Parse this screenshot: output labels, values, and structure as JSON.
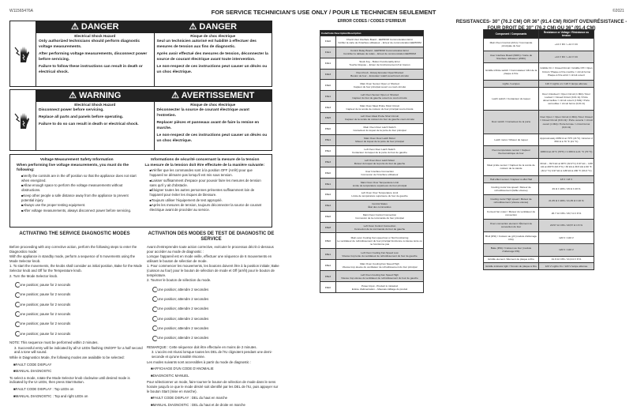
{
  "header": {
    "doc_id": "W11565476A",
    "title": "FOR SERVICE TECHNICIAN'S USE ONLY / POUR LE TECHNICIEN SEULEMENT",
    "copyright": "©2021"
  },
  "danger": {
    "en": {
      "title": "DANGER",
      "sub": "Electrical Shock Hazard",
      "p": [
        "Only authorized technicians should perform diagnostic voltage measurements.",
        "After performing voltage measurements, disconnect power before servicing.",
        "Failure to follow these instructions can result in death or electrical shock."
      ]
    },
    "fr": {
      "title": "DANGER",
      "sub": "Risque de choc électrique",
      "p": [
        "Seul un technicien autorisé est habilité à effectuer des mesures de tension aux fins de diagnostic.",
        "Après avoir effectué des mesures de tension, déconnecter la source de courant électrique avant toute intervention.",
        "Le non-respect de ces instructions peut causer un décès ou un choc électrique."
      ]
    }
  },
  "warning": {
    "en": {
      "title": "WARNING",
      "sub": "Electrical Shock Hazard",
      "p": [
        "Disconnect power before servicing.",
        "Replace all parts and panels before operating.",
        "Failure to do so can result in death or electrical shock."
      ]
    },
    "fr": {
      "title": "AVERTISSEMENT",
      "sub": "Risque de choc électrique",
      "p": [
        "Déconnecter la source de courant électrique avant l'entretien.",
        "Replacer pièces et panneaux avant de faire la remise en marche.",
        "Le non-respect de ces instructions peut causer un décès ou un choc électrique."
      ]
    }
  },
  "voltage": {
    "en": {
      "title": "Voltage Measurement Safety Information",
      "lead": "When performing live voltage measurements, you must do the following:",
      "items": [
        "Verify the controls are in the off position so that the appliance does not start when energized.",
        "Allow enough space to perform the voltage measurements without obstructions.",
        "Keep other people a safe distance away from the appliance to prevent potential injury.",
        "Always use the proper testing equipment.",
        "After voltage measurements, always disconnect power before servicing."
      ]
    },
    "fr": {
      "title": "Informations de sécurité concernant la mesure de la tension",
      "lead": "La mesure de la tension doit être effectuée de la manière suivante:",
      "items": [
        "Vérifier que les commandes sont à la position OFF (Arrêt) pour que l'appareil ne démarre pas lorsqu'il est mis sous tension.",
        "Laisser suffisamment d'espace pour pouvoir faire les mesures de tension sans qu'il y ait d'obstacle.",
        "Éloigner toutes les autres personnes présentes suffisamment loin de l'appareil pour éviter les risques de blessure.",
        "Toujours utiliser l'équipement de test approprié.",
        "Après les mesures de tension, toujours déconnecter la source de courant électrique avant de procéder au service."
      ]
    }
  },
  "activate": {
    "en": {
      "title": "ACTIVATING THE SERVICE DIAGNOSTIC MODES",
      "intro": [
        "Before proceeding with any corrective action, perform the following steps to enter the Diagnostics mode:",
        "With the appliance in standby mode, perform a sequence of 6 movements using the Mode Selector knob."
      ],
      "step1": "1. To start the movements, the knobs shall consider as initial position, Bake for the Mode Selector knob and Off for the Temperature knob.",
      "step2": "2. Turn the Mode Selector knob.",
      "steps": [
        "one position; pause for 2 seconds",
        "one position; pause for 2 seconds",
        "one position; pause for 2 seconds",
        "one position; pause for 2 seconds",
        "one position; pause for 2 seconds",
        "one position; pause for 2 seconds"
      ],
      "note": "NOTE: This sequence must be performed within 2 minutes.",
      "step3": "3. Successful entry will be indicated by all UI LEDs flashing ON/OFF for a half second and a tone will sound.",
      "avail": "While in Diagnostics Mode, the following modes are available to be selected:",
      "modes": [
        "FAULT CODE DISPLAY",
        "MANUAL DIAGNOSTIC"
      ],
      "select": "To select a mode, rotate the Mode Selector knob clockwise until desired mode is indicated by the UI LEDs, then press Start Button.",
      "leds": [
        "FAULT CODE DISPLAY : Top LEDs on",
        "MANUAL DIAGNOSTIC : Top and right LEDs on"
      ]
    },
    "fr": {
      "title": "ACTIVATION DES MODES DE TEST DE DIAGNOSTIC DE SERVICE",
      "intro": [
        "Avant d'entreprendre toute action corrective, exécuter le processus décrit ci-dessous pour accéder au mode de diagnostic :",
        "Lorsque l'appareil est en mode veille, effectuer une séquence de 6 mouvements en utilisant le bouton de sélection de mode."
      ],
      "step1": "1. Pour commencer les mouvements, les boutons doivent être à la position initiale; Bake (cuisson au four) pour le bouton de sélection de mode et Off (arrêt) pour le bouton de température.",
      "step2": "2. Tourner le bouton de sélection du mode.",
      "steps": [
        "Une position; attendre 2 secondes",
        "Une position; attendre 2 secondes",
        "Une position; attendre 2 secondes",
        "Une position; attendre 2 secondes",
        "Une position; attendre 2 secondes",
        "Une position; attendre 2 secondes"
      ],
      "note": "REMARQUE : Cette séquence doit être effectuée en moins de 2 minutes.",
      "step3": "3. L'accès est réussi lorsque toutes les DEL de l'IU clignotent pendant une demi-seconde et qu'une tonalité résonne.",
      "avail": "Les modes suivants sont accessibles à partir du mode de diagnostic :",
      "modes": [
        "AFFICHAGE D'UN CODE D'ANOMALIE",
        "DIAGNOSTIC MANUEL"
      ],
      "select": "Pour sélectionner un mode, faire tourner le bouton de sélection de mode dans le sens horaire jusqu'à ce que le mode désiré soit identifié par les DEL de l'IU, puis appuyer sur le bouton Start (mise en marche).",
      "leds": [
        "FAULT CODE DISPLAY : DEL du haut en marche",
        "MANUAL DIAGNOSTIC : DEL du haut et de droite en marche"
      ]
    }
  },
  "errors": {
    "title": "ERROR CODES / CODES D'ERREUR",
    "header": "Code/Code Description/Description",
    "rows": [
      [
        "F1E0",
        "Check User Interface Board - EEPROM Communication Error",
        "Vérifier la carte de l'interface utilisateur – Erreur de communication EEPROM"
      ],
      [
        "F1E1",
        "Control Relay Board - EEPROM Communication Error",
        "Contrôler le tableau de relais – Erreur de communication EEPROM"
      ],
      [
        "F2E1",
        "Stuck Key - Button Functionality Error",
        "Touche bloquée – Erreur de fonctionnement d'un bouton"
      ],
      [
        "F2E3",
        "Oven Knob - Rotary Encoder Open/Shorted",
        "Bouton de four – Encodeur rotatif ouvert/court-circuité"
      ],
      [
        "F3E0",
        "Main Oven Sensor Open or Shorted",
        "Capteur du four principal ouvert ou court-circuité"
      ],
      [
        "F3E1",
        "Left Oven Sensor Open or Shorted",
        "Capteur du four de gauche ouvert ou court-circuité"
      ],
      [
        "F3E3",
        "Main Oven Meat Probe Short Circuit",
        "Capteur de la sonde de cuisson du four principal court-circuité"
      ],
      [
        "F3E5",
        "Left Oven Meat Probe Short Circuit",
        "Capteur de la sonde de cuisson du four de gauche court-circuité"
      ],
      [
        "F5E0",
        "Main Oven Door Latch Switch",
        "Contacteur du loquet de la porte du four principal"
      ],
      [
        "F5E1",
        "Main Oven Door Latch Motor",
        "Moteur du loquet de la porte du four principal"
      ],
      [
        "F5E2",
        "Left Oven Door Latch Switch",
        "Contacteur du loquet de la porte du four de gauche"
      ],
      [
        "F5E3",
        "Left Oven Door Latch Motor",
        "Moteur du loquet de la porte du four de gauche"
      ],
      [
        "F6E0",
        "User Interface Connection",
        "Connexion de l'interface utilisateur"
      ],
      [
        "F6E1",
        "Main Oven Over Temperature Limit",
        "Limite de température supérieure du four principal"
      ],
      [
        "F6E2",
        "Left Oven Over Temperature Limit",
        "Limite de température supérieure du four de gauche"
      ],
      [
        "F6E4",
        "Control Status",
        "État des commandes"
      ],
      [
        "F6E6",
        "Main Oven Control Connection",
        "Connexion de la commande du four principal"
      ],
      [
        "F6E8",
        "Left Oven Control Connection",
        "Connexion de la commande du four de gauche"
      ],
      [
        "F8E0",
        "Main oven Cooling Fan speed low or Not Functioning",
        "Le ventilateur de refroidissement du four principal fonctionne à vitesse lente ou ne fonctionne pas"
      ],
      [
        "F8E1",
        "Left Oven Cooling Fan Speed Low",
        "Vitesse trop lente du ventilateur de refroidissement du four de gauche"
      ],
      [
        "F8E2",
        "Main Oven Cooling Fan Speed High",
        "Vitesse trop élevée du ventilateur de refroidissement du four principal"
      ],
      [
        "F8E3",
        "Left Oven Cooling Fan Speed High",
        "Vitesse trop élevée du ventilateur de refroidissement du four de gauche"
      ],
      [
        "F9E0",
        "Power Input - Product is miswired",
        "Entrée d'alimentation – Mauvais câblage du produit"
      ]
    ]
  },
  "resistances": {
    "title": "RESISTANCES- 30\" (76.2 CM) OR 36\" (91.4 CM) RIGHT OVEN/RÉSISTANCE - FOUR DROIT DE 30\" (76,2 CM) OU 36\" (91,4 CM)",
    "headers": [
      "Component / Composants",
      "Resistance or Voltage / Résistance ou tension"
    ],
    "rows": [
      [
        "Main Oven Control (ACU) / Commande principale du four",
        "+14 V DC / +14 V CC"
      ],
      [
        "User Interface Board (WRC) / Carte de l'interface utilisateur (WRC)",
        "+14 V DC / +14 V CC"
      ],
      [
        "Griddle infinite switch / Commutateur infini de la plaque à frire",
        "Griddle On = Closed Circuit / Griddle Off = Open Circuit / Plaque à frire marche = circuit fermé Plaque à frire arrêt = circuit ouvert"
      ],
      [
        "Lights / Lampes",
        "120 V Lights on / 120 V lampe allumée"
      ],
      [
        "Latch switch / Contacteur du loquet",
        "Door Unlocked = Open Circuit (1 MΩ) / Door Locked = Closed Circuit (0.01 Ω) / Porte déverrouillée = circuit ouvert (1 MΩ) / Porte verrouillée = circuit fermé (0,01 Ω)"
      ],
      [
        "Door switch / Contacteur de la porte",
        "Door Open = Open Circuit (1 MΩ) / Door Closed = Closed Circuit (0.01 Ω) / Porte ouverte = circuit ouvert (1 MΩ) / Porte fermée = circuit fermé (0,01 Ω)"
      ],
      [
        "Latch motor / Moteur du loquet",
        "Approximately 2650 Ω at 70°F (21°C) / Environ 2 650 Ω à 70 °F (21 °C)"
      ],
      [
        "Oven temperature sensor / Capteur thermométrique du four",
        "1080 Ω at 21°C (70°F) / 1 080 Ω à 21 °C (70 °F)"
      ],
      [
        "Meat probe sensor / Capteur de la sonde de cuisson de la viande",
        "30 kΩ – 39.5 kΩ at 90°F (32.2°C) 3.97 kΩ – 4.88 kΩ at 200°F (93.3°C) / 30 kΩ à 39,5 kΩ à 90 °F (32,2 °C) 3,97 kΩ à 4,88 kΩ à 200 °F (93,3 °C)"
      ],
      [
        "Hall effect sensor / Capteur à effet Hall",
        "18 V / 18 V"
      ],
      [
        "Cooling motor low speed / Moteur de refroidissement (faible vitesse)",
        "29 Ω ± 20% / 29 Ω ± 20 %"
      ],
      [
        "Cooling motor High speed / Moteur de refroidissement (vitesse élevée)",
        "21.35 Ω ± 20% / 21,35 Ω ± 20 %"
      ],
      [
        "Convect fan motor / Moteur du ventilateur de convection",
        "26.7 Ω ± 8% / 26,7 Ω ± 8 %"
      ],
      [
        "Oven convection element / Élément de convection du four",
        "20.57 Ω ± 8% / 20,57 Ω ± 8 %"
      ],
      [
        "Broil (DSI) / Cuisson au gril (module d'allumage DSI)",
        "120 V / 120 V"
      ],
      [
        "Bake (DSI) / Cuisson au four (module d'allumage DSI)",
        "120 V / 120 V"
      ],
      [
        "Griddle element / Élément de plaque à frire",
        "41.9 Ω ± 8% / 41,9 Ω ± 8 %"
      ],
      [
        "Griddle indicator light / Témoin de plaque à frire",
        "120 V Lights On / 120 V lampe allumée"
      ]
    ]
  },
  "icons": {
    "hazard": "electrical-shock-hand-icon",
    "alert": "warning-triangle-icon",
    "knob": "rotate-knob-icon"
  },
  "colors": {
    "bar": "#222222",
    "row_shade": "#d4d4d4"
  }
}
